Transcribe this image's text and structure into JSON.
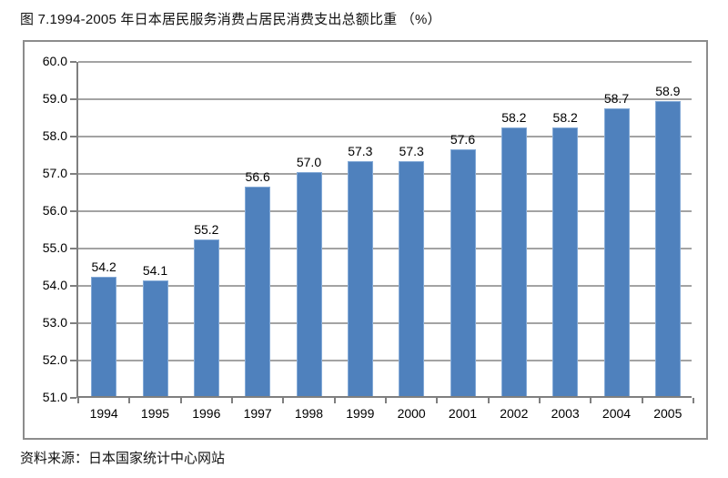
{
  "page": {
    "title": "图 7.1994-2005 年日本居民服务消费占居民消费支出总额比重 （%）",
    "source": "资料来源：日本国家统计中心网站"
  },
  "chart_data": {
    "type": "bar",
    "title": "图 7.1994-2005 年日本居民服务消费占居民消费支出总额比重 （%）",
    "categories": [
      "1994",
      "1995",
      "1996",
      "1997",
      "1998",
      "1999",
      "2000",
      "2001",
      "2002",
      "2003",
      "2004",
      "2005"
    ],
    "values": [
      54.2,
      54.1,
      55.2,
      56.6,
      57.0,
      57.3,
      57.3,
      57.6,
      58.2,
      58.2,
      58.7,
      58.9
    ],
    "data_labels": [
      "54.2",
      "54.1",
      "55.2",
      "56.6",
      "57.0",
      "57.3",
      "57.3",
      "57.6",
      "58.2",
      "58.2",
      "58.7",
      "58.9"
    ],
    "xlabel": "",
    "ylabel": "",
    "ylim": [
      51.0,
      60.0
    ],
    "ytick_step": 1.0,
    "ytick_labels": [
      "51.0",
      "52.0",
      "53.0",
      "54.0",
      "55.0",
      "56.0",
      "57.0",
      "58.0",
      "59.0",
      "60.0"
    ],
    "grid": true,
    "legend": "none",
    "colors": {
      "bar_fill": "#4f81bd",
      "bar_border": "#84aad7",
      "gridline": "#a3a3a3",
      "axis": "#7f7f7f",
      "frame_border": "#8c8c8c",
      "text": "#000000"
    }
  }
}
